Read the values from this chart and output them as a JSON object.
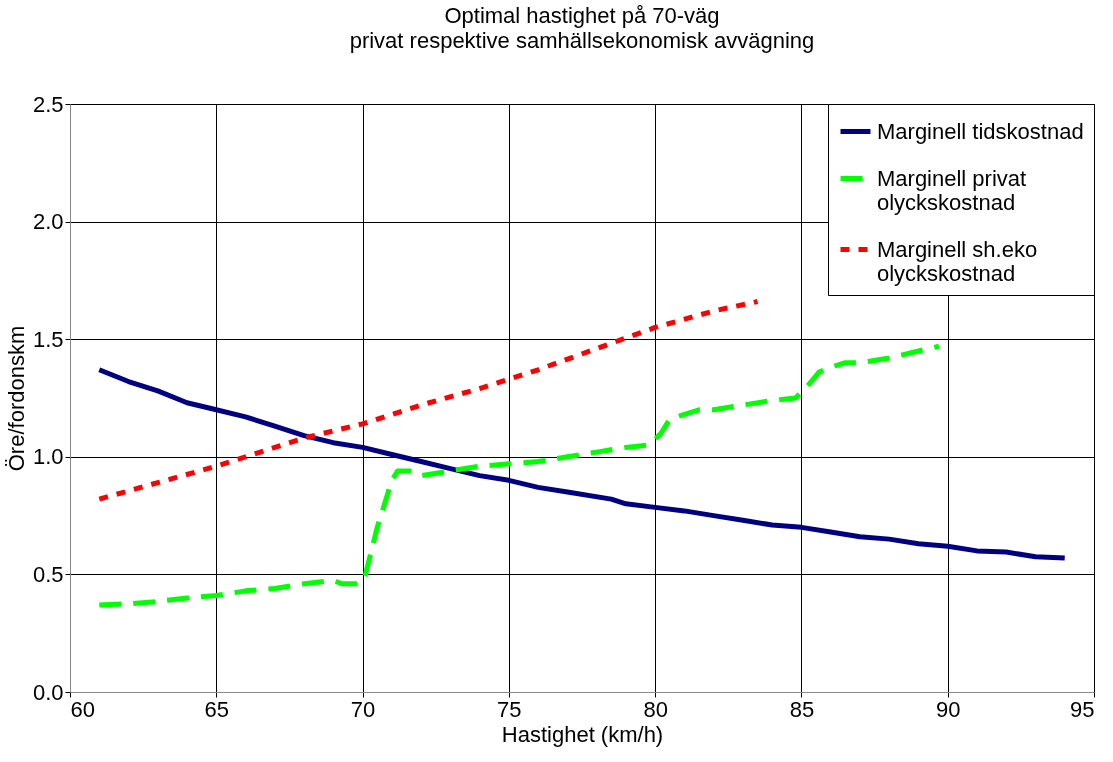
{
  "chart_data": {
    "type": "line",
    "title": "Optimal hastighet på 70-väg",
    "subtitle": "privat respektive samhällsekonomisk avvägning",
    "xlabel": "Hastighet (km/h)",
    "ylabel": "Öre/fordonskm",
    "xlim": [
      60,
      95
    ],
    "xticks": [
      60,
      65,
      70,
      75,
      80,
      85,
      90,
      95
    ],
    "ylim": [
      0,
      2.5
    ],
    "yticks": [
      {
        "value": 0,
        "label": "0.0"
      },
      0.5,
      {
        "value": 1,
        "label": "1.0"
      },
      1.5,
      {
        "value": 2,
        "label": "2.0"
      },
      2.5
    ],
    "grid": true,
    "legend": "top right",
    "marker": "none",
    "series": [
      {
        "name": "Marginell tidskostnad",
        "color": "#000080",
        "line_style": "solid",
        "x": [
          61,
          62,
          63,
          64,
          65,
          66,
          67,
          68,
          69,
          70,
          71,
          72,
          73,
          74,
          75,
          76,
          77,
          78.5,
          79,
          80,
          81,
          82,
          83,
          84,
          85,
          86,
          87,
          88,
          89,
          90,
          91,
          92,
          93,
          94
        ],
        "values": [
          1.37,
          1.32,
          1.28,
          1.23,
          1.2,
          1.17,
          1.13,
          1.09,
          1.06,
          1.04,
          1.01,
          0.98,
          0.95,
          0.92,
          0.9,
          0.87,
          0.85,
          0.82,
          0.8,
          0.785,
          0.77,
          0.75,
          0.73,
          0.71,
          0.7,
          0.68,
          0.66,
          0.65,
          0.63,
          0.62,
          0.6,
          0.595,
          0.575,
          0.57
        ]
      },
      {
        "name": "Marginell privat olyckskostnad",
        "color": "#00ff00",
        "line_style": "dashed",
        "x": [
          61,
          62,
          63,
          64,
          65,
          66,
          67,
          68,
          69,
          69.3,
          69.9,
          70.1,
          70.5,
          71,
          71.2,
          71.6,
          72,
          73,
          74,
          75,
          76,
          77,
          78,
          79,
          79.8,
          80.2,
          80.5,
          81,
          81.5,
          82,
          83,
          84,
          84.8,
          85.2,
          85.6,
          86,
          86.5,
          87,
          88,
          89,
          89.7
        ],
        "values": [
          0.37,
          0.375,
          0.385,
          0.4,
          0.41,
          0.43,
          0.44,
          0.46,
          0.475,
          0.46,
          0.46,
          0.5,
          0.7,
          0.9,
          0.94,
          0.94,
          0.92,
          0.94,
          0.96,
          0.97,
          0.98,
          1.0,
          1.02,
          1.04,
          1.05,
          1.1,
          1.16,
          1.18,
          1.2,
          1.2,
          1.22,
          1.24,
          1.25,
          1.3,
          1.36,
          1.38,
          1.4,
          1.4,
          1.42,
          1.45,
          1.47
        ]
      },
      {
        "name": "Marginell sh.eko olyckskostnad",
        "color": "#ff0000",
        "line_style": "dotted",
        "x": [
          61,
          63,
          65,
          67,
          68,
          70,
          72,
          74,
          76,
          78,
          80,
          82,
          83.5
        ],
        "values": [
          0.82,
          0.89,
          0.96,
          1.04,
          1.08,
          1.14,
          1.22,
          1.29,
          1.37,
          1.46,
          1.55,
          1.62,
          1.66
        ]
      }
    ]
  }
}
